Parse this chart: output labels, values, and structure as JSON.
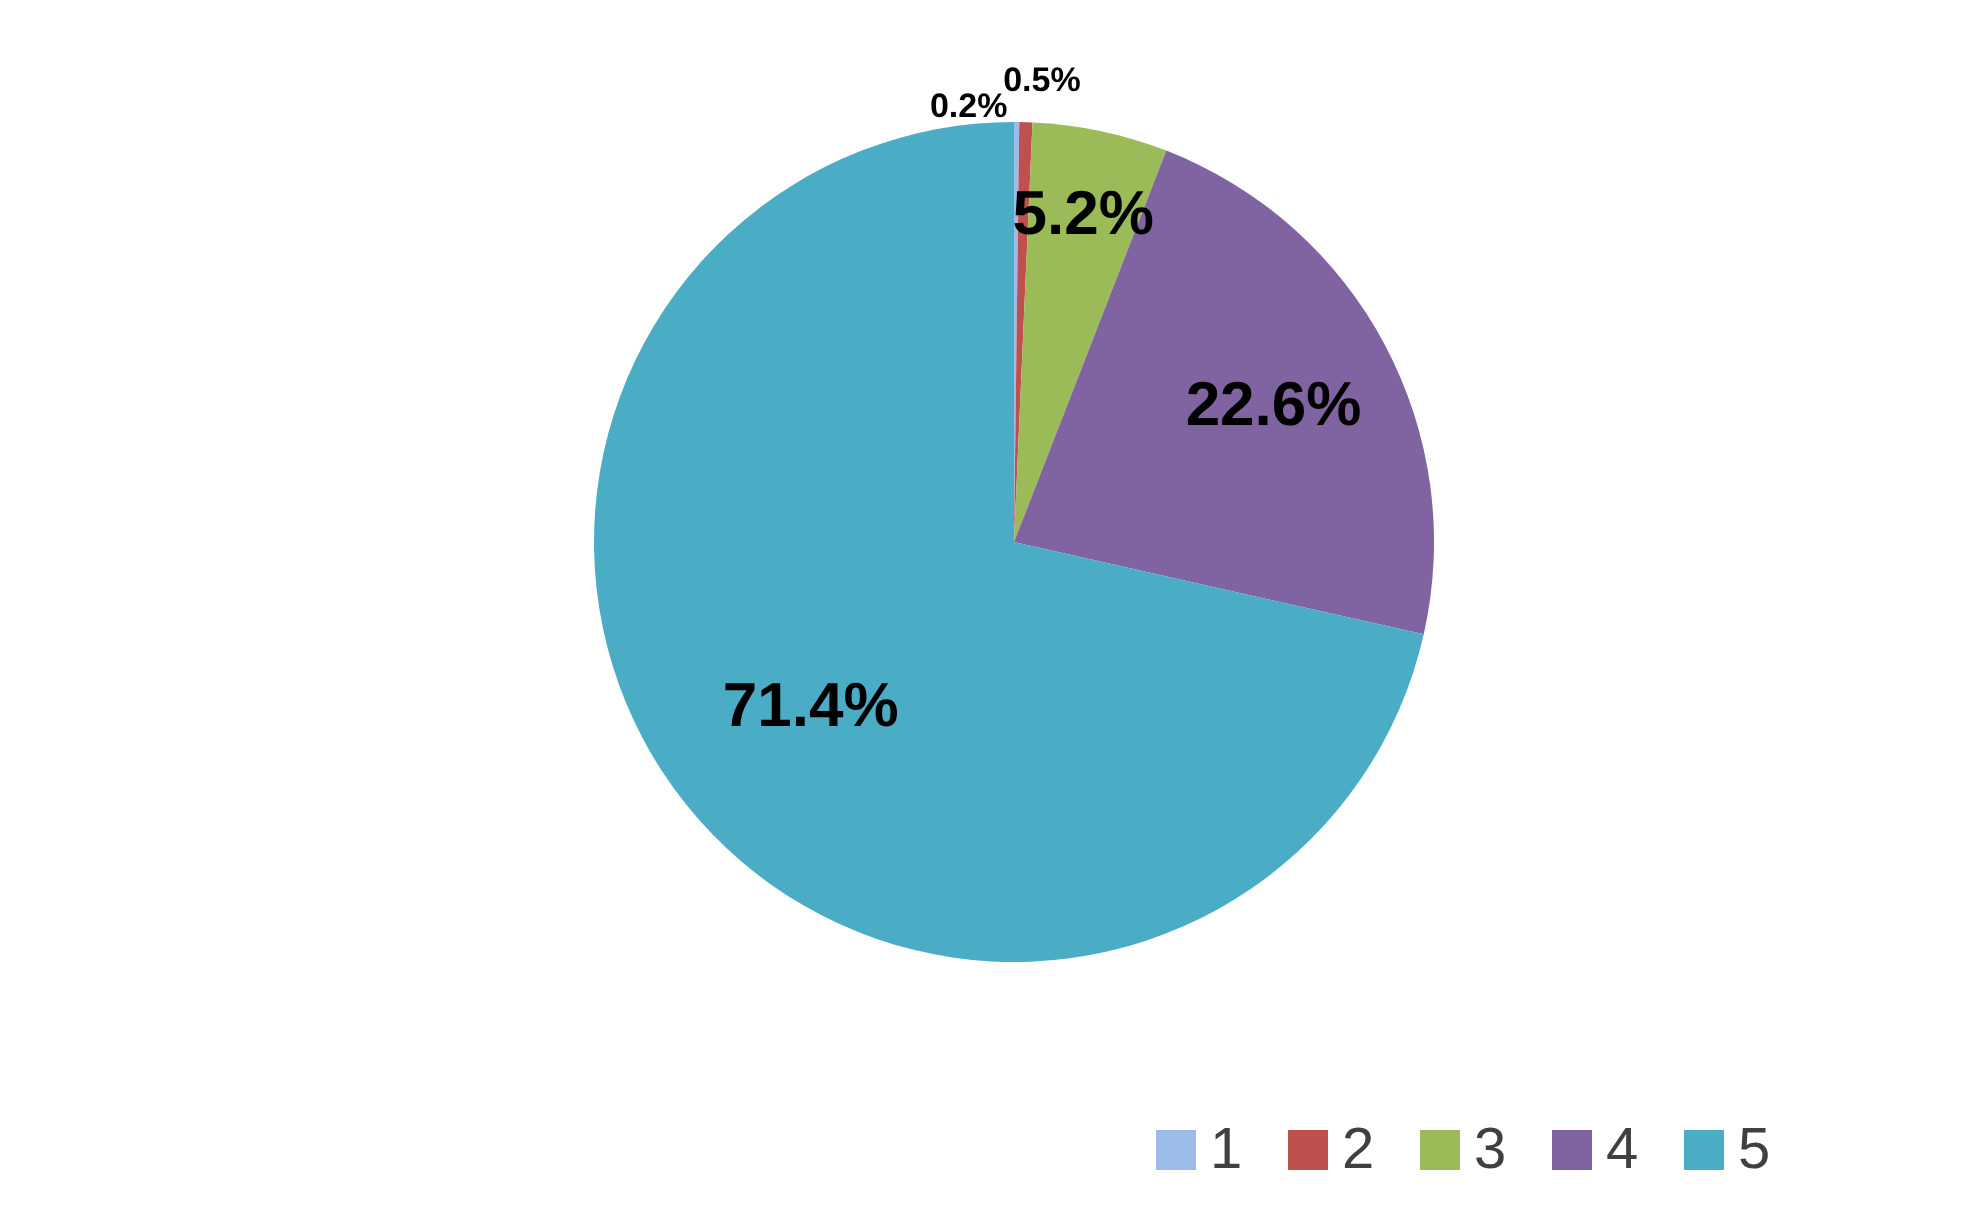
{
  "chart_data": {
    "type": "pie",
    "categories": [
      "1",
      "2",
      "3",
      "4",
      "5"
    ],
    "values": [
      0.2,
      0.5,
      5.2,
      22.6,
      71.4
    ],
    "colors": [
      "#9dbbe8",
      "#c0504d",
      "#9bbb59",
      "#8064a2",
      "#4bacc6"
    ],
    "value_labels": [
      "0.2%",
      "0.5%",
      "5.2%",
      "22.6%",
      "71.4%"
    ],
    "legend": "bottom right"
  }
}
